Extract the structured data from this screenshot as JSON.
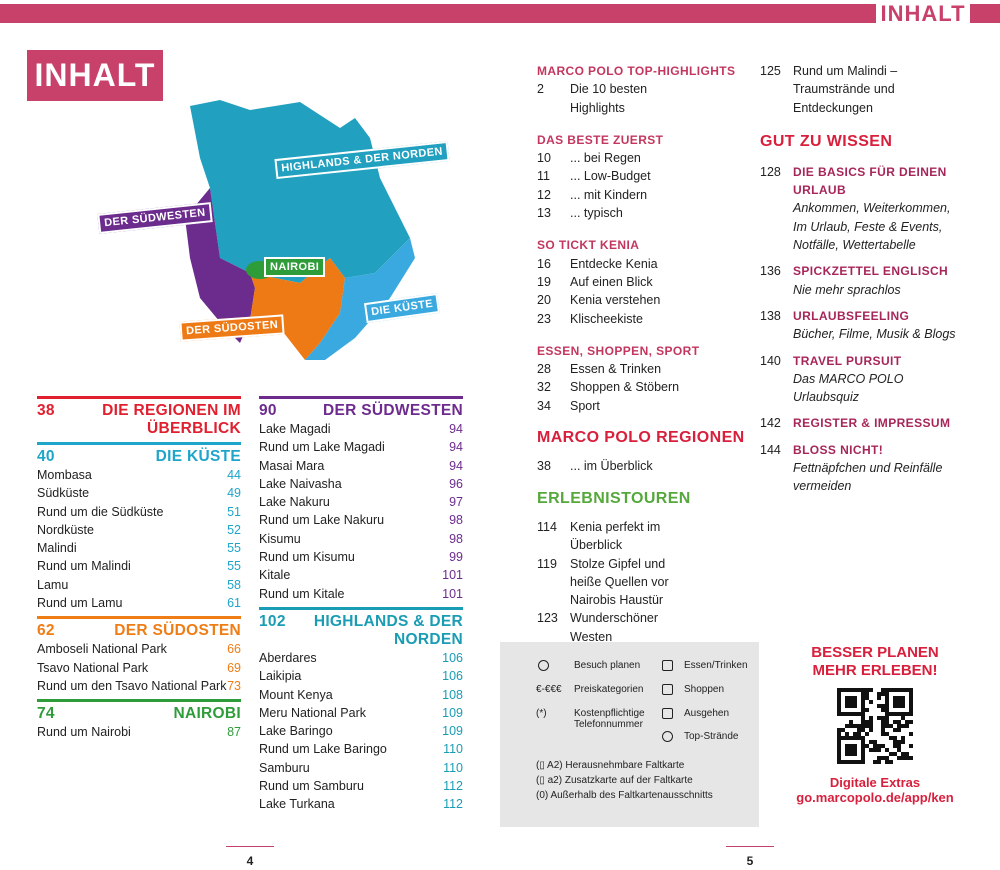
{
  "header": {
    "tab": "INHALT",
    "title": "INHALT"
  },
  "map": {
    "labels": [
      "HIGHLANDS & DER NORDEN",
      "DER SÜDWESTEN",
      "NAIROBI",
      "DER SÜDOSTEN",
      "DIE KÜSTE"
    ]
  },
  "regions": {
    "columns": [
      [
        {
          "page": 38,
          "title": "DIE REGIONEN IM ÜBERBLICK",
          "color": "#e0202f",
          "entries": []
        },
        {
          "page": 40,
          "title": "DIE KÜSTE",
          "color": "#1ea5c9",
          "entries": [
            {
              "name": "Mombasa",
              "page": 44
            },
            {
              "name": "Südküste",
              "page": 49
            },
            {
              "name": "Rund um die Südküste",
              "page": 51
            },
            {
              "name": "Nordküste",
              "page": 52
            },
            {
              "name": "Malindi",
              "page": 55
            },
            {
              "name": "Rund um Malindi",
              "page": 55
            },
            {
              "name": "Lamu",
              "page": 58
            },
            {
              "name": "Rund um Lamu",
              "page": 61
            }
          ]
        },
        {
          "page": 62,
          "title": "DER SÜDOSTEN",
          "color": "#ef7d16",
          "entries": [
            {
              "name": "Amboseli National Park",
              "page": 66
            },
            {
              "name": "Tsavo National Park",
              "page": 69
            },
            {
              "name": "Rund um den Tsavo National Park",
              "page": 73
            }
          ]
        },
        {
          "page": 74,
          "title": "NAIROBI",
          "color": "#2f9c3a",
          "entries": [
            {
              "name": "Rund um Nairobi",
              "page": 87
            }
          ]
        }
      ],
      [
        {
          "page": 90,
          "title": "DER SÜDWESTEN",
          "color": "#6e2b8e",
          "entries": [
            {
              "name": "Lake Magadi",
              "page": 94
            },
            {
              "name": "Rund um Lake Magadi",
              "page": 94
            },
            {
              "name": "Masai Mara",
              "page": 94
            },
            {
              "name": "Lake Naivasha",
              "page": 96
            },
            {
              "name": "Lake Nakuru",
              "page": 97
            },
            {
              "name": "Rund um Lake Nakuru",
              "page": 98
            },
            {
              "name": "Kisumu",
              "page": 98
            },
            {
              "name": "Rund um Kisumu",
              "page": 99
            },
            {
              "name": "Kitale",
              "page": 101
            },
            {
              "name": "Rund um Kitale",
              "page": 101
            }
          ]
        },
        {
          "page": 102,
          "title": "HIGHLANDS & DER NORDEN",
          "color": "#1a9cb4",
          "entries": [
            {
              "name": "Aberdares",
              "page": 106
            },
            {
              "name": "Laikipia",
              "page": 106
            },
            {
              "name": "Mount Kenya",
              "page": 108
            },
            {
              "name": "Meru National Park",
              "page": 109
            },
            {
              "name": "Lake Baringo",
              "page": 109
            },
            {
              "name": "Rund um Lake Baringo",
              "page": 110
            },
            {
              "name": "Samburu",
              "page": 110
            },
            {
              "name": "Rund um Samburu",
              "page": 112
            },
            {
              "name": "Lake Turkana",
              "page": 112
            }
          ]
        }
      ]
    ]
  },
  "toc": {
    "sections": [
      {
        "heading": "MARCO POLO TOP-HIGHLIGHTS",
        "style": "small",
        "color": "#c3375f",
        "entries": [
          {
            "page": 2,
            "text": "Die 10 besten Highlights"
          }
        ]
      },
      {
        "heading": "DAS BESTE ZUERST",
        "style": "small",
        "color": "#c3375f",
        "entries": [
          {
            "page": 10,
            "text": "... bei Regen"
          },
          {
            "page": 11,
            "text": "... Low-Budget"
          },
          {
            "page": 12,
            "text": "... mit Kindern"
          },
          {
            "page": 13,
            "text": "... typisch"
          }
        ]
      },
      {
        "heading": "SO TICKT KENIA",
        "style": "small",
        "color": "#c3375f",
        "entries": [
          {
            "page": 16,
            "text": "Entdecke Kenia"
          },
          {
            "page": 19,
            "text": "Auf einen Blick"
          },
          {
            "page": 20,
            "text": "Kenia verstehen"
          },
          {
            "page": 23,
            "text": "Klischeekiste"
          }
        ]
      },
      {
        "heading": "ESSEN, SHOPPEN, SPORT",
        "style": "small",
        "color": "#c3375f",
        "entries": [
          {
            "page": 28,
            "text": "Essen & Trinken"
          },
          {
            "page": 32,
            "text": "Shoppen & Stöbern"
          },
          {
            "page": 34,
            "text": "Sport"
          }
        ]
      },
      {
        "heading": "MARCO POLO REGIONEN",
        "style": "big",
        "color": "#d81f3c",
        "entries": [
          {
            "page": 38,
            "text": "... im Überblick"
          }
        ]
      },
      {
        "heading": "ERLEBNISTOUREN",
        "style": "big",
        "color": "#56a83c",
        "entries": [
          {
            "page": 114,
            "text": "Kenia perfekt im Überblick"
          },
          {
            "page": 119,
            "text": "Stolze Gipfel und heiße Quellen vor Nairobis Haustür"
          },
          {
            "page": 123,
            "text": "Wunderschöner Westen"
          },
          {
            "page": 125,
            "text": "Rund um Malindi – Traumstrände und Entdeckungen"
          }
        ]
      }
    ]
  },
  "wissen": {
    "heading": "GUT ZU WISSEN",
    "items": [
      {
        "page": 128,
        "title": "DIE BASICS FÜR DEINEN URLAUB",
        "text": "Ankommen, Weiterkommen, Im Urlaub, Feste & Events, Notfälle, Wettertabelle"
      },
      {
        "page": 136,
        "title": "SPICKZETTEL ENGLISCH",
        "text": "Nie mehr sprachlos"
      },
      {
        "page": 138,
        "title": "URLAUBSFEELING",
        "text": "Bücher, Filme, Musik & Blogs"
      },
      {
        "page": 140,
        "title": "TRAVEL PURSUIT",
        "text": "Das MARCO POLO Urlaubsquiz"
      },
      {
        "page": 142,
        "title": "REGISTER & IMPRESSUM"
      },
      {
        "page": 144,
        "title": "BLOSS NICHT!",
        "text": "Fettnäpfchen und Reinfälle vermeiden"
      }
    ]
  },
  "legend": {
    "items": [
      {
        "key": "",
        "text": "Besuch planen"
      },
      {
        "key": "",
        "text": "Essen/Trinken"
      },
      {
        "key": "€-€€€",
        "text": "Preiskategorien"
      },
      {
        "key": "",
        "text": "Shoppen"
      },
      {
        "key": "(*)",
        "text": "Kostenpflichtige Telefonnummer"
      },
      {
        "key": "",
        "text": "Ausgehen"
      },
      {
        "key": "",
        "text": "Top-Strände"
      }
    ],
    "notes": [
      "(▯ A2) Herausnehmbare Faltkarte",
      "(▯ a2) Zusatzkarte auf der Faltkarte",
      "(0) Außerhalb des Faltkartenausschnitts"
    ]
  },
  "promo": {
    "headline": "BESSER PLANEN MEHR ERLEBEN!",
    "label": "Digitale Extras",
    "url": "go.marcopolo.de/app/ken"
  },
  "footer": {
    "left": 4,
    "right": 5
  }
}
